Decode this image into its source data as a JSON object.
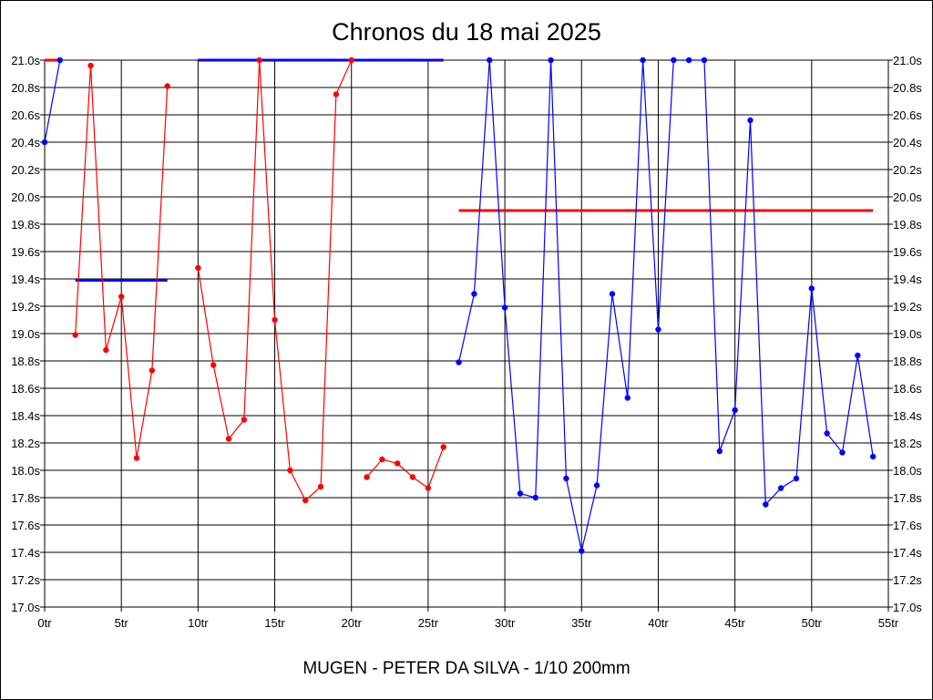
{
  "chart_data": {
    "type": "line",
    "title": "Chronos du 18 mai 2025",
    "subtitle": "MUGEN - PETER DA SILVA - 1/10 200mm",
    "xlim": [
      0,
      55
    ],
    "ylim": [
      17.0,
      21.0
    ],
    "grid": true,
    "x_ticks": [
      {
        "value": 0,
        "label": "0tr"
      },
      {
        "value": 5,
        "label": "5tr"
      },
      {
        "value": 10,
        "label": "10tr"
      },
      {
        "value": 15,
        "label": "15tr"
      },
      {
        "value": 20,
        "label": "20tr"
      },
      {
        "value": 25,
        "label": "25tr"
      },
      {
        "value": 30,
        "label": "30tr"
      },
      {
        "value": 35,
        "label": "35tr"
      },
      {
        "value": 40,
        "label": "40tr"
      },
      {
        "value": 45,
        "label": "45tr"
      },
      {
        "value": 50,
        "label": "50tr"
      },
      {
        "value": 55,
        "label": "55tr"
      }
    ],
    "y_ticks": [
      {
        "value": 21.0,
        "label": "21.0s"
      },
      {
        "value": 20.8,
        "label": "20.8s"
      },
      {
        "value": 20.6,
        "label": "20.6s"
      },
      {
        "value": 20.4,
        "label": "20.4s"
      },
      {
        "value": 20.2,
        "label": "20.2s"
      },
      {
        "value": 20.0,
        "label": "20.0s"
      },
      {
        "value": 19.8,
        "label": "19.8s"
      },
      {
        "value": 19.6,
        "label": "19.6s"
      },
      {
        "value": 19.4,
        "label": "19.4s"
      },
      {
        "value": 19.2,
        "label": "19.2s"
      },
      {
        "value": 19.0,
        "label": "19.0s"
      },
      {
        "value": 18.8,
        "label": "18.8s"
      },
      {
        "value": 18.6,
        "label": "18.6s"
      },
      {
        "value": 18.4,
        "label": "18.4s"
      },
      {
        "value": 18.2,
        "label": "18.2s"
      },
      {
        "value": 18.0,
        "label": "18.0s"
      },
      {
        "value": 17.8,
        "label": "17.8s"
      },
      {
        "value": 17.6,
        "label": "17.6s"
      },
      {
        "value": 17.4,
        "label": "17.4s"
      },
      {
        "value": 17.2,
        "label": "17.2s"
      },
      {
        "value": 17.0,
        "label": "17.0s"
      }
    ],
    "series": [
      {
        "color": "#0000ff",
        "x": [
          0,
          1
        ],
        "y": [
          20.4,
          21.0
        ]
      },
      {
        "color": "#ff0000",
        "x": [
          2,
          3,
          4,
          5,
          6,
          7,
          8
        ],
        "y": [
          18.99,
          20.96,
          18.88,
          19.27,
          18.09,
          18.73,
          20.81
        ]
      },
      {
        "color": "#ff0000",
        "x": [
          10,
          11,
          12,
          13,
          14,
          15,
          16,
          17,
          18,
          19,
          20
        ],
        "y": [
          19.48,
          18.77,
          18.23,
          18.37,
          21.0,
          19.1,
          18.0,
          17.78,
          17.88,
          20.75,
          21.0
        ]
      },
      {
        "color": "#ff0000",
        "x": [
          21,
          22,
          23,
          24,
          25,
          26
        ],
        "y": [
          17.95,
          18.08,
          18.05,
          17.95,
          17.87,
          18.17
        ]
      },
      {
        "color": "#0000ff",
        "x": [
          27,
          28,
          29,
          30,
          31,
          32,
          33,
          34,
          35,
          36,
          37,
          38,
          39,
          40,
          41,
          42,
          43,
          44,
          45,
          46,
          47,
          48,
          49,
          50,
          51,
          52,
          53,
          54
        ],
        "y": [
          18.79,
          19.29,
          21.0,
          19.19,
          17.83,
          17.8,
          21.0,
          17.94,
          17.41,
          17.89,
          19.29,
          18.53,
          21.0,
          19.03,
          21.0,
          21.0,
          21.0,
          18.14,
          18.44,
          20.56,
          17.75,
          17.87,
          17.94,
          19.33,
          18.27,
          18.13,
          18.84,
          18.1
        ]
      }
    ],
    "averages": [
      {
        "color": "#ff0000",
        "x_start": 0,
        "x_end": 1,
        "value": 21.0
      },
      {
        "color": "#0000ff",
        "x_start": 2,
        "x_end": 8,
        "value": 19.39
      },
      {
        "color": "#0000ff",
        "x_start": 10,
        "x_end": 26,
        "value": 21.0
      },
      {
        "color": "#ff0000",
        "x_start": 27,
        "x_end": 54,
        "value": 19.9
      }
    ]
  }
}
